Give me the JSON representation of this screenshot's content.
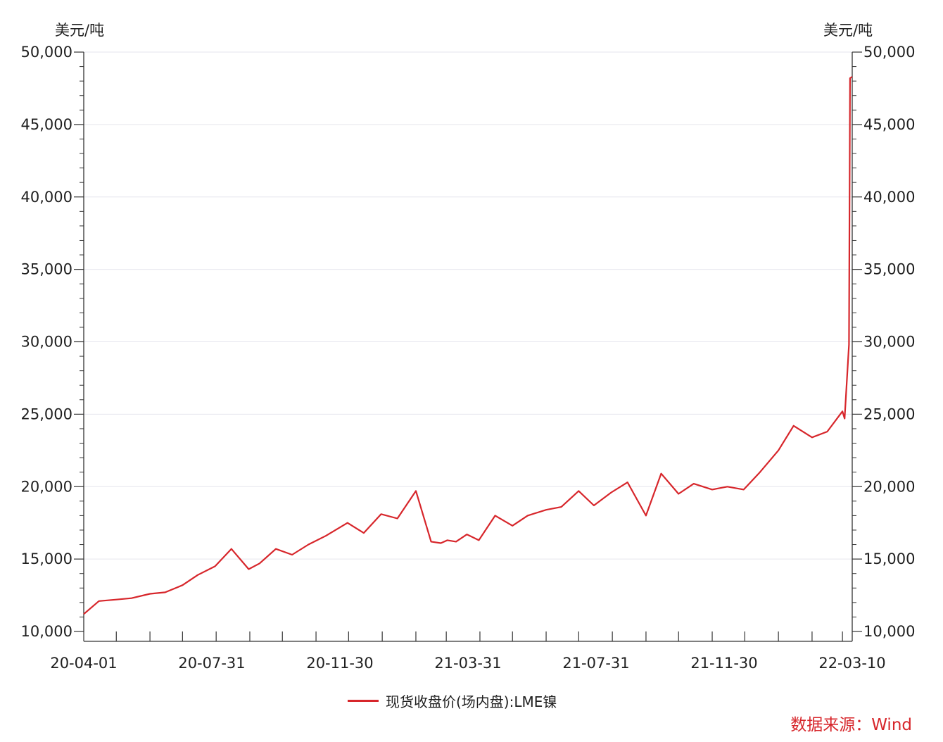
{
  "chart_data": {
    "type": "line",
    "title": "",
    "ylabel_left": "美元/吨",
    "ylabel_right": "美元/吨",
    "ylim": [
      10000,
      50000
    ],
    "y_ticks": [
      "10,000",
      "15,000",
      "20,000",
      "25,000",
      "30,000",
      "35,000",
      "40,000",
      "45,000",
      "50,000"
    ],
    "x_tick_labels": [
      "20-04-01",
      "20-07-31",
      "20-11-30",
      "21-03-31",
      "21-07-31",
      "21-11-30",
      "22-03-10"
    ],
    "x_range": [
      "2020-04-01",
      "2022-03-10"
    ],
    "grid": true,
    "legend_position": "bottom",
    "colors": {
      "line": "#d7262b",
      "source": "#d7262b"
    },
    "series": [
      {
        "name": "现货收盘价(场内盘):LME镍",
        "x": [
          "2020-04-01",
          "2020-04-15",
          "2020-05-01",
          "2020-05-15",
          "2020-06-01",
          "2020-06-15",
          "2020-07-01",
          "2020-07-15",
          "2020-07-31",
          "2020-08-15",
          "2020-08-31",
          "2020-09-10",
          "2020-09-25",
          "2020-10-10",
          "2020-10-25",
          "2020-11-10",
          "2020-11-30",
          "2020-12-15",
          "2020-12-31",
          "2021-01-15",
          "2021-02-01",
          "2021-02-15",
          "2021-02-24",
          "2021-03-02",
          "2021-03-10",
          "2021-03-20",
          "2021-03-31",
          "2021-04-15",
          "2021-05-01",
          "2021-05-15",
          "2021-06-01",
          "2021-06-15",
          "2021-07-01",
          "2021-07-15",
          "2021-07-31",
          "2021-08-15",
          "2021-09-01",
          "2021-09-15",
          "2021-10-01",
          "2021-10-15",
          "2021-11-01",
          "2021-11-15",
          "2021-11-30",
          "2021-12-15",
          "2022-01-01",
          "2022-01-15",
          "2022-02-01",
          "2022-02-15",
          "2022-03-01",
          "2022-03-03",
          "2022-03-07",
          "2022-03-08",
          "2022-03-10"
        ],
        "values": [
          11200,
          12100,
          12200,
          12300,
          12600,
          12700,
          13200,
          13900,
          14500,
          15700,
          14300,
          14700,
          15700,
          15300,
          16000,
          16600,
          17500,
          16800,
          18100,
          17800,
          19700,
          16200,
          16100,
          16300,
          16200,
          16700,
          16300,
          18000,
          17300,
          18000,
          18400,
          18600,
          19700,
          18700,
          19600,
          20300,
          18000,
          20900,
          19500,
          20200,
          19800,
          20000,
          19800,
          21000,
          22500,
          24200,
          23400,
          23800,
          25200,
          24700,
          29800,
          48200,
          48300
        ]
      }
    ]
  },
  "legend": {
    "label": "现货收盘价(场内盘):LME镍"
  },
  "source": {
    "text": "数据来源：Wind"
  }
}
